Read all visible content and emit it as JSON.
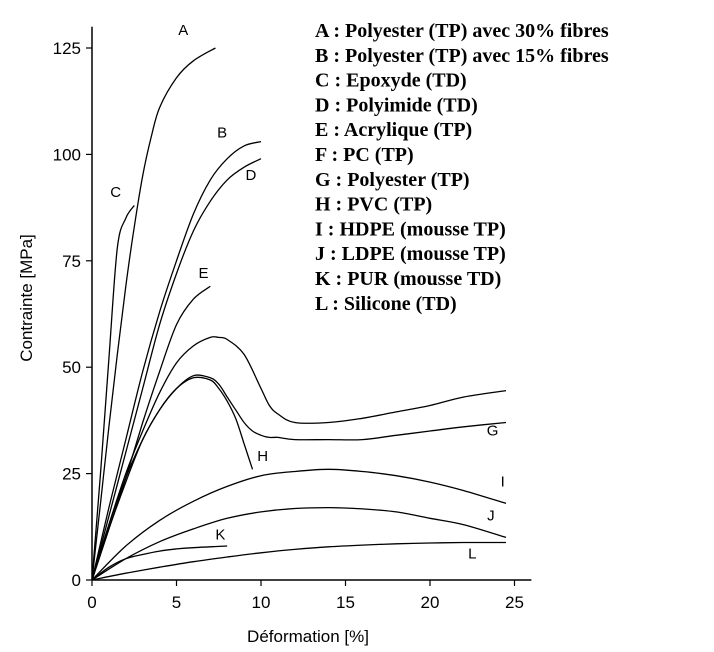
{
  "chart_data": {
    "type": "line",
    "title": "",
    "xlabel": "Déformation [%]",
    "ylabel": "Contrainte [MPa]",
    "xlim": [
      0,
      26
    ],
    "ylim": [
      0,
      130
    ],
    "x_ticks": [
      "0",
      "5",
      "10",
      "15",
      "20",
      "25"
    ],
    "y_ticks": [
      "0",
      "25",
      "50",
      "75",
      "100",
      "125"
    ],
    "grid": false,
    "legend_position": "top-right",
    "series": [
      {
        "label": "A",
        "x": [
          0,
          0.5,
          1,
          1.5,
          2,
          2.5,
          3,
          3.5,
          4,
          5,
          6,
          7.3
        ],
        "y": [
          0,
          18,
          36,
          53,
          69,
          83,
          95,
          104,
          111,
          118,
          122,
          125
        ]
      },
      {
        "label": "B",
        "x": [
          0,
          1,
          2,
          3,
          4,
          5,
          6,
          7,
          8,
          9,
          10
        ],
        "y": [
          0,
          17,
          33,
          49,
          63,
          75,
          86,
          94,
          99,
          102,
          103
        ]
      },
      {
        "label": "C",
        "x": [
          0,
          0.5,
          1,
          1.5,
          2,
          2.5
        ],
        "y": [
          0,
          25,
          52,
          78,
          85,
          88
        ]
      },
      {
        "label": "D",
        "x": [
          0,
          1,
          2,
          3,
          4,
          5,
          6,
          7,
          8,
          9,
          10
        ],
        "y": [
          0,
          15,
          30,
          45,
          60,
          72,
          82,
          89,
          94,
          97,
          99
        ]
      },
      {
        "label": "E",
        "x": [
          0,
          1,
          2,
          3,
          4,
          5,
          6,
          7
        ],
        "y": [
          0,
          12,
          24,
          37,
          49,
          60,
          66,
          69
        ]
      },
      {
        "label": "F",
        "x": [
          0,
          1,
          2,
          3,
          4,
          5,
          6,
          7,
          7.5,
          8,
          8.5,
          9,
          9.5,
          10,
          10.5,
          11,
          12,
          14,
          16,
          18,
          20,
          22,
          24.5
        ],
        "y": [
          0,
          13,
          24,
          33,
          40,
          45,
          48,
          47.5,
          46,
          43,
          40,
          37,
          35,
          34,
          33.5,
          33.5,
          33,
          33,
          33,
          34,
          35,
          36,
          37
        ]
      },
      {
        "label": "G",
        "x": [
          0,
          1,
          2,
          3,
          4,
          5,
          6,
          7,
          7.5,
          8,
          9,
          10,
          10.5,
          11,
          12,
          14,
          16,
          18,
          20,
          22,
          24.5
        ],
        "y": [
          0,
          13,
          25,
          35,
          44,
          51,
          55,
          57,
          57,
          56.5,
          53,
          45,
          41,
          39,
          37,
          37,
          38,
          39.5,
          41,
          43,
          44.5
        ]
      },
      {
        "label": "H",
        "x": [
          0,
          1,
          2,
          3,
          4,
          5,
          6,
          7,
          7.5,
          8,
          8.5,
          9,
          9.5
        ],
        "y": [
          0,
          12,
          23,
          33,
          40,
          45,
          47.5,
          47,
          45,
          42,
          38,
          32,
          26
        ]
      },
      {
        "label": "I",
        "x": [
          0,
          2,
          4,
          6,
          8,
          10,
          12,
          14,
          16,
          18,
          20,
          22,
          24.5
        ],
        "y": [
          0,
          8,
          14,
          18.5,
          22,
          24.5,
          25.5,
          26,
          25.5,
          24.5,
          23,
          21,
          18
        ]
      },
      {
        "label": "J",
        "x": [
          0,
          2,
          4,
          6,
          8,
          10,
          12,
          14,
          16,
          18,
          20,
          22,
          24.5
        ],
        "y": [
          0,
          5,
          9,
          12,
          14.5,
          16,
          16.8,
          17,
          16.7,
          16,
          14.5,
          13,
          10
        ]
      },
      {
        "label": "K",
        "x": [
          0,
          1,
          2,
          3,
          4,
          5,
          6,
          7,
          8
        ],
        "y": [
          0,
          3,
          5,
          6,
          6.8,
          7.3,
          7.6,
          7.8,
          8
        ]
      },
      {
        "label": "L",
        "x": [
          0,
          2,
          4,
          6,
          8,
          10,
          12,
          14,
          16,
          18,
          20,
          22,
          24.5
        ],
        "y": [
          0,
          1.6,
          3,
          4.3,
          5.4,
          6.4,
          7.2,
          7.8,
          8.2,
          8.5,
          8.7,
          8.8,
          8.8
        ]
      }
    ],
    "curve_labels": [
      {
        "text": "A",
        "x": 5.4,
        "y": 128
      },
      {
        "text": "B",
        "x": 7.7,
        "y": 104
      },
      {
        "text": "C",
        "x": 1.4,
        "y": 90
      },
      {
        "text": "D",
        "x": 9.4,
        "y": 94
      },
      {
        "text": "E",
        "x": 6.6,
        "y": 71
      },
      {
        "text": "H",
        "x": 10.1,
        "y": 28
      },
      {
        "text": "G",
        "x": 23.7,
        "y": 34
      },
      {
        "text": "I",
        "x": 24.3,
        "y": 22
      },
      {
        "text": "J",
        "x": 23.6,
        "y": 14
      },
      {
        "text": "K",
        "x": 7.6,
        "y": 9.5
      },
      {
        "text": "L",
        "x": 22.5,
        "y": 5
      }
    ],
    "legend": [
      "A : Polyester (TP) avec 30% fibres",
      "B : Polyester (TP) avec 15% fibres",
      "C : Epoxyde (TD)",
      "D : Polyimide (TD)",
      "E : Acrylique (TP)",
      "F : PC (TP)",
      "G : Polyester (TP)",
      "H : PVC (TP)",
      "I : HDPE (mousse TP)",
      "J : LDPE (mousse TP)",
      "K : PUR (mousse TD)",
      "L : Silicone (TD)"
    ]
  }
}
